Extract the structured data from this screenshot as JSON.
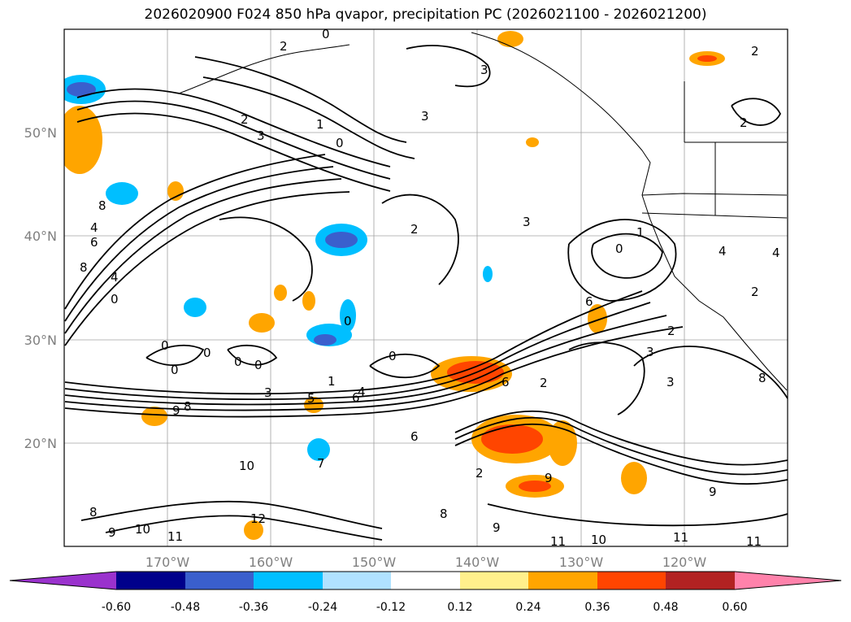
{
  "title": "2026020900 F024 850 hPa qvapor, precipitation PC (2026021100 - 2026021200)",
  "map": {
    "lat_labels": [
      "50°N",
      "40°N",
      "30°N",
      "20°N"
    ],
    "lon_labels": [
      "170°W",
      "160°W",
      "150°W",
      "140°W",
      "130°W",
      "120°W"
    ],
    "extent": {
      "lon_west": -180,
      "lon_east": -110,
      "lat_south": 10,
      "lat_north": 60
    },
    "grid": true
  },
  "colorbar": {
    "ticks": [
      "-0.60",
      "-0.48",
      "-0.36",
      "-0.24",
      "-0.12",
      "0.12",
      "0.24",
      "0.36",
      "0.48",
      "0.60"
    ],
    "colors": [
      "#9a32cd",
      "#00008b",
      "#3a5fcd",
      "#00bfff",
      "#b0e2ff",
      "#ffffff",
      "#fff08c",
      "#ffa500",
      "#ff4500",
      "#b22222",
      "#ff82ab"
    ]
  },
  "contour_labels": [
    "0",
    "2",
    "3",
    "2",
    "1",
    "0",
    "3",
    "2",
    "2",
    "3",
    "8",
    "4",
    "6",
    "8",
    "4",
    "0",
    "0",
    "0",
    "0",
    "0",
    "0",
    "0",
    "1",
    "3",
    "5",
    "4",
    "6",
    "9",
    "8",
    "6",
    "2",
    "6",
    "3",
    "2",
    "3",
    "2",
    "1",
    "0",
    "3",
    "4",
    "4",
    "2",
    "6",
    "0",
    "10",
    "7",
    "8",
    "12",
    "9",
    "10",
    "11",
    "8",
    "9",
    "11",
    "10",
    "11",
    "11",
    "9",
    "2",
    "9",
    "8"
  ]
}
